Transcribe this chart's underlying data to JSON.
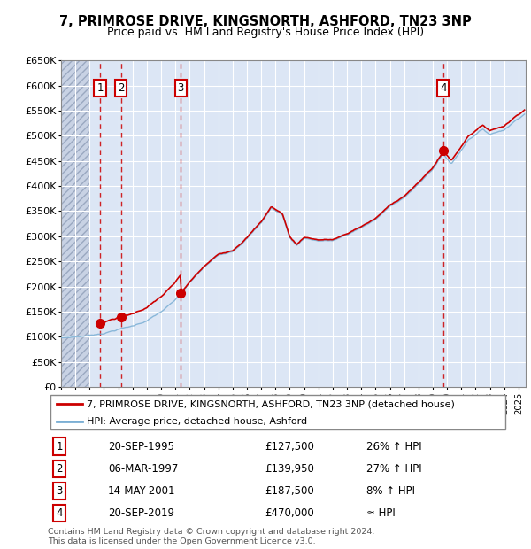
{
  "title": "7, PRIMROSE DRIVE, KINGSNORTH, ASHFORD, TN23 3NP",
  "subtitle": "Price paid vs. HM Land Registry's House Price Index (HPI)",
  "ylim": [
    0,
    650000
  ],
  "yticks": [
    0,
    50000,
    100000,
    150000,
    200000,
    250000,
    300000,
    350000,
    400000,
    450000,
    500000,
    550000,
    600000,
    650000
  ],
  "ytick_labels": [
    "£0",
    "£50K",
    "£100K",
    "£150K",
    "£200K",
    "£250K",
    "£300K",
    "£350K",
    "£400K",
    "£450K",
    "£500K",
    "£550K",
    "£600K",
    "£650K"
  ],
  "sale_dates": [
    1995.72,
    1997.18,
    2001.37,
    2019.72
  ],
  "sale_prices": [
    127500,
    139950,
    187500,
    470000
  ],
  "sale_labels": [
    "1",
    "2",
    "3",
    "4"
  ],
  "sale_color": "#cc0000",
  "hpi_color": "#7bafd4",
  "dashed_line_color": "#cc0000",
  "background_color": "#dce6f5",
  "grid_color": "#ffffff",
  "legend_label_property": "7, PRIMROSE DRIVE, KINGSNORTH, ASHFORD, TN23 3NP (detached house)",
  "legend_label_hpi": "HPI: Average price, detached house, Ashford",
  "table_rows": [
    [
      "1",
      "20-SEP-1995",
      "£127,500",
      "26% ↑ HPI"
    ],
    [
      "2",
      "06-MAR-1997",
      "£139,950",
      "27% ↑ HPI"
    ],
    [
      "3",
      "14-MAY-2001",
      "£187,500",
      "8% ↑ HPI"
    ],
    [
      "4",
      "20-SEP-2019",
      "£470,000",
      "≈ HPI"
    ]
  ],
  "footnote": "Contains HM Land Registry data © Crown copyright and database right 2024.\nThis data is licensed under the Open Government Licence v3.0.",
  "xmin": 1993.0,
  "xmax": 2025.5
}
